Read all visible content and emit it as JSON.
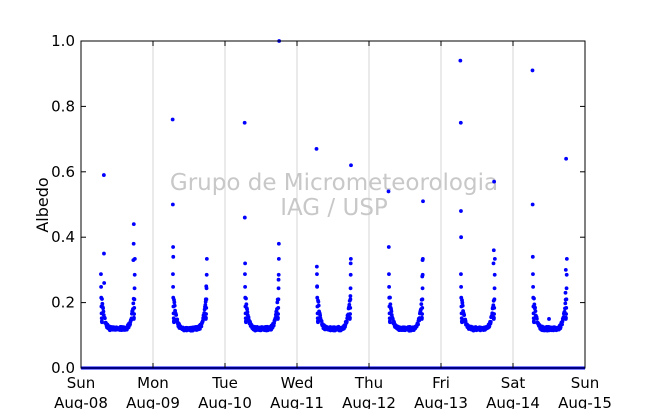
{
  "chart_data": {
    "type": "scatter",
    "title": "",
    "xlabel": "",
    "ylabel": "Albedo",
    "ylim": [
      0.0,
      1.0
    ],
    "y_ticks": [
      0.0,
      0.2,
      0.4,
      0.6,
      0.8,
      1.0
    ],
    "y_tick_labels": [
      "0.0",
      "0.2",
      "0.4",
      "0.6",
      "0.8",
      "1.0"
    ],
    "xlim": [
      "2010-08-08",
      "2010-08-15"
    ],
    "x_tick_labels": [
      {
        "day": "Sun",
        "date": "Aug-08"
      },
      {
        "day": "Mon",
        "date": "Aug-09"
      },
      {
        "day": "Tue",
        "date": "Aug-10"
      },
      {
        "day": "Wed",
        "date": "Aug-11"
      },
      {
        "day": "Thu",
        "date": "Aug-12"
      },
      {
        "day": "Fri",
        "date": "Aug-13"
      },
      {
        "day": "Sat",
        "date": "Aug-14"
      },
      {
        "day": "Sun",
        "date": "Aug-15"
      }
    ],
    "grid": "vertical",
    "watermark": [
      "Grupo de Micrometeorologia",
      "IAG / USP"
    ],
    "marker_color": "#0000ff",
    "night_value": 0.0,
    "daily_extremes": [
      {
        "date": "Aug-08",
        "points": [
          [
            7.62,
            0.59
          ],
          [
            7.65,
            0.35
          ],
          [
            7.72,
            0.26
          ],
          [
            17.6,
            0.44
          ],
          [
            17.55,
            0.38
          ],
          [
            17.45,
            0.33
          ]
        ]
      },
      {
        "date": "Aug-09",
        "points": [
          [
            6.55,
            0.76
          ],
          [
            6.62,
            0.5
          ],
          [
            6.7,
            0.37
          ],
          [
            6.75,
            0.34
          ],
          [
            17.75,
            0.25
          ],
          [
            17.6,
            0.21
          ]
        ]
      },
      {
        "date": "Aug-10",
        "points": [
          [
            6.55,
            0.75
          ],
          [
            6.6,
            0.46
          ],
          [
            6.7,
            0.32
          ],
          [
            18.05,
            1.0
          ],
          [
            17.95,
            0.38
          ],
          [
            17.85,
            0.27
          ]
        ]
      },
      {
        "date": "Aug-11",
        "points": [
          [
            6.5,
            0.67
          ],
          [
            6.62,
            0.31
          ],
          [
            6.7,
            0.25
          ],
          [
            18.0,
            0.62
          ],
          [
            17.9,
            0.32
          ],
          [
            17.8,
            0.22
          ]
        ]
      },
      {
        "date": "Aug-12",
        "points": [
          [
            6.5,
            0.54
          ],
          [
            6.6,
            0.37
          ],
          [
            18.0,
            0.51
          ],
          [
            17.85,
            0.33
          ],
          [
            17.75,
            0.28
          ]
        ]
      },
      {
        "date": "Aug-13",
        "points": [
          [
            6.45,
            0.94
          ],
          [
            6.6,
            0.75
          ],
          [
            6.65,
            0.48
          ],
          [
            6.7,
            0.4
          ],
          [
            17.7,
            0.57
          ],
          [
            17.6,
            0.36
          ],
          [
            17.5,
            0.32
          ]
        ]
      },
      {
        "date": "Aug-14",
        "points": [
          [
            6.5,
            0.91
          ],
          [
            6.55,
            0.5
          ],
          [
            6.6,
            0.34
          ],
          [
            17.7,
            0.64
          ],
          [
            17.6,
            0.3
          ],
          [
            17.5,
            0.23
          ],
          [
            12.0,
            0.15
          ]
        ]
      }
    ]
  }
}
